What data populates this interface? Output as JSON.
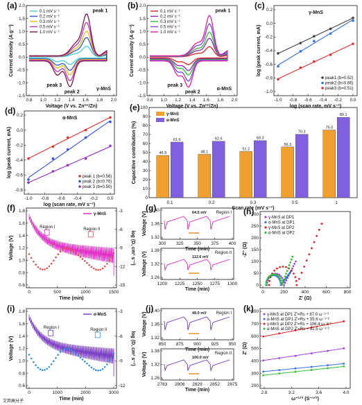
{
  "chart_data": [
    {
      "panel": "(a)",
      "type": "line",
      "xlabel": "Voltage (V vs. Zn²⁺/Zn)",
      "ylabel": "Current density (A g⁻¹)",
      "xlim": [
        0.8,
        2.0
      ],
      "ylim": [
        -1.5,
        2.0
      ],
      "xticks": [
        "0.8",
        "1.0",
        "1.2",
        "1.4",
        "1.6",
        "1.8",
        "2.0"
      ],
      "yticks": [
        "-1.5",
        "-1.0",
        "-0.5",
        "0.0",
        "0.5",
        "1.0",
        "1.5",
        "2.0"
      ],
      "legend": [
        "0.1 mV s⁻¹",
        "0.2 mV s⁻¹",
        "0.3 mV s⁻¹",
        "0.5 mV s⁻¹",
        "1.0 mV s⁻¹"
      ],
      "colors": [
        "#40d0d0",
        "#3050e0",
        "#e0c000",
        "#c030c0",
        "#7a1450"
      ],
      "annotations": [
        "peak 1",
        "peak 3",
        "peak 2",
        "γ-MnS"
      ]
    },
    {
      "panel": "(b)",
      "type": "line",
      "xlabel": "Voltage (V vs. Zn²⁺/Zn)",
      "ylabel": "Current density (A g⁻¹)",
      "xlim": [
        0.8,
        2.0
      ],
      "ylim": [
        -1.5,
        2.0
      ],
      "xticks": [
        "0.8",
        "1.0",
        "1.2",
        "1.4",
        "1.6",
        "1.8",
        "2.0"
      ],
      "yticks": [
        "-1.5",
        "-1.0",
        "-0.5",
        "0.0",
        "0.5",
        "1.0",
        "1.5",
        "2.0"
      ],
      "legend": [
        "0.1 mV s⁻¹",
        "0.2 mV s⁻¹",
        "0.3 mV s⁻¹",
        "0.5 mV s⁻¹",
        "1.0 mV s⁻¹"
      ],
      "colors": [
        "#e02020",
        "#9020c0",
        "#30c030",
        "#8040e0",
        "#e020a0"
      ],
      "annotations": [
        "peak 1",
        "peak 3",
        "peak 2",
        "α-MnS"
      ]
    },
    {
      "panel": "(c)",
      "type": "scatter",
      "title": "γ-MnS",
      "xlabel": "log (scan rate, mV s⁻¹)",
      "ylabel": "log (peak current, mA)",
      "xlim": [
        -1.0,
        0.0
      ],
      "ylim": [
        -1.0,
        0.2
      ],
      "xticks": [
        "-1.0",
        "-0.8",
        "-0.6",
        "-0.4",
        "-0.2",
        "0.0"
      ],
      "yticks": [
        "-1.0",
        "-0.8",
        "-0.6",
        "-0.4",
        "-0.2",
        "0.0",
        "0.2"
      ],
      "series": [
        {
          "name": "peak1 (b=0.52)",
          "color": "#404040",
          "x": [
            -1.0,
            -0.7,
            -0.52,
            -0.3,
            0.0
          ],
          "y": [
            -0.44,
            -0.29,
            -0.19,
            -0.08,
            0.08
          ]
        },
        {
          "name": "peak2 (b=0.66)",
          "color": "#3070e0",
          "x": [
            -1.0,
            -0.7,
            -0.52,
            -0.3,
            0.0
          ],
          "y": [
            -0.63,
            -0.41,
            -0.26,
            -0.15,
            0.04
          ]
        },
        {
          "name": "peak3 (b=0.51)",
          "color": "#e03030",
          "x": [
            -1.0,
            -0.7,
            -0.52,
            -0.3,
            0.0
          ],
          "y": [
            -0.82,
            -0.65,
            -0.56,
            -0.46,
            -0.3
          ]
        }
      ]
    },
    {
      "panel": "(d)",
      "type": "scatter",
      "title": "α-MnS",
      "xlabel": "log (scan rate, mV s⁻¹)",
      "ylabel": "log (peak current, mA)",
      "xlim": [
        -1.0,
        0.0
      ],
      "ylim": [
        -0.8,
        0.2
      ],
      "xticks": [
        "-1.0",
        "-0.8",
        "-0.6",
        "-0.4",
        "-0.2",
        "0.0"
      ],
      "yticks": [
        "-0.8",
        "-0.6",
        "-0.4",
        "-0.2",
        "0.0",
        "0.2"
      ],
      "series": [
        {
          "name": "peak 1 (b=0.56)",
          "color": "#e03030",
          "x": [
            -1.0,
            -0.7,
            -0.52,
            -0.3,
            0.0
          ],
          "y": [
            -0.38,
            -0.22,
            -0.1,
            0.0,
            0.17
          ]
        },
        {
          "name": "peak 2 (b=0.76)",
          "color": "#3050e0",
          "x": [
            -1.0,
            -0.7,
            -0.52,
            -0.3,
            0.0
          ],
          "y": [
            -0.66,
            -0.38,
            -0.26,
            -0.1,
            0.11
          ]
        },
        {
          "name": "peak 3 (b=0.50)",
          "color": "#9030c0",
          "x": [
            -1.0,
            -0.7,
            -0.52,
            -0.3,
            0.0
          ],
          "y": [
            -0.7,
            -0.55,
            -0.47,
            -0.38,
            -0.21
          ]
        }
      ]
    },
    {
      "panel": "(e)",
      "type": "bar",
      "xlabel": "Scan rate (mV s⁻¹)",
      "ylabel": "Capacitive contribution (%)",
      "ylim": [
        0,
        100
      ],
      "yticks": [
        "0",
        "10",
        "20",
        "30",
        "40",
        "50",
        "60",
        "70",
        "80",
        "90",
        "100"
      ],
      "categories": [
        "0.1",
        "0.2",
        "0.3",
        "0.5",
        "1"
      ],
      "series": [
        {
          "name": "γ-MnS",
          "color": "#f0a030",
          "values": [
            46.9,
            48.1,
            51.2,
            56.3,
            75.0
          ],
          "labels": [
            "46.9",
            "48.1",
            "51.2",
            "56.3",
            "75.0"
          ]
        },
        {
          "name": "α-MnS",
          "color": "#8060e0",
          "values": [
            61.6,
            62.6,
            63.3,
            70.3,
            89.1
          ],
          "labels": [
            "61.6",
            "62.6",
            "63.3",
            "70.3",
            "89.1"
          ]
        }
      ]
    },
    {
      "panel": "(f)",
      "type": "line",
      "xlabel": "Time (min)",
      "ylabel": "Voltage (V)",
      "y2label": "log (D, cm² s⁻¹)",
      "xlim": [
        0,
        1700
      ],
      "xticks": [
        "0",
        "500",
        "1000",
        "1500"
      ],
      "yticks": [
        "0.6",
        "0.8",
        "1.0",
        "1.2",
        "1.4",
        "1.6",
        "1.8"
      ],
      "y2ticks": [
        "-15",
        "-12",
        "-9",
        "-6",
        "-3"
      ],
      "legend": [
        "γ-MnS"
      ],
      "regions": [
        "Region I",
        "Region II"
      ]
    },
    {
      "panel": "(g)",
      "type": "line",
      "subplots": [
        {
          "xlabel": "Time (min)",
          "ylabel": "Voltage (V)",
          "xticks": [
            "300",
            "325",
            "350",
            "375",
            "400"
          ],
          "yticks": [
            "1.32",
            "1.36",
            "1.40"
          ],
          "region": "Region I",
          "annotation": "64.5 mV"
        },
        {
          "xlabel": "Time (min)",
          "ylabel": "Voltage (V)",
          "xticks": [
            "1200",
            "1225",
            "1250",
            "1275",
            "1300"
          ],
          "yticks": [
            "1.26",
            "1.32",
            "1.38"
          ],
          "region": "Region II",
          "annotation": "112.6 mV"
        }
      ]
    },
    {
      "panel": "(h)",
      "type": "scatter",
      "xlabel": "Z' (Ω)",
      "ylabel": "-Z'' (Ω)",
      "xlim": [
        0,
        800
      ],
      "ylim": [
        0,
        300
      ],
      "xticks": [
        "0",
        "200",
        "400",
        "600",
        "800"
      ],
      "yticks": [
        "0",
        "50",
        "100",
        "150",
        "200",
        "250",
        "300"
      ],
      "series": [
        {
          "name": "γ-MnS at DP1",
          "color": "#a040e0"
        },
        {
          "name": "α-MnS at DP1",
          "color": "#3070e0"
        },
        {
          "name": "γ-MnS at DP2",
          "color": "#e02020"
        },
        {
          "name": "α-MnS at DP2",
          "color": "#30c030"
        }
      ]
    },
    {
      "panel": "(i)",
      "type": "line",
      "xlabel": "Time (min)",
      "ylabel": "Voltage (V)",
      "y2label": "log (D, cm² s⁻¹)",
      "xlim": [
        0,
        3500
      ],
      "xticks": [
        "0",
        "1000",
        "2000",
        "3000"
      ],
      "yticks": [
        "0.6",
        "0.8",
        "1.0",
        "1.2",
        "1.4",
        "1.6",
        "1.8"
      ],
      "y2ticks": [
        "-12",
        "-9",
        "-6",
        "-3"
      ],
      "legend": [
        "α-MnS"
      ],
      "regions": [
        "Region I",
        "Region II"
      ]
    },
    {
      "panel": "(j)",
      "type": "line",
      "subplots": [
        {
          "xlabel": "Time (min)",
          "ylabel": "Voltage (V)",
          "xticks": [
            "850",
            "875",
            "900",
            "925",
            "950"
          ],
          "yticks": [
            "1.32",
            "1.36",
            "1.40"
          ],
          "region": "Region I",
          "annotation": "49.0 mV"
        },
        {
          "xlabel": "Time (min)",
          "ylabel": "Voltage (V)",
          "xticks": [
            "2783",
            "2806",
            "2829",
            "2852",
            "2875"
          ],
          "yticks": [
            "1.26",
            "1.32",
            "1.38"
          ],
          "region": "Region II",
          "annotation": "100.0 mV"
        }
      ]
    },
    {
      "panel": "(k)",
      "type": "scatter",
      "xlabel": "ω⁻¹ᐟ² (S⁻¹ᐟ²)",
      "ylabel": "Z' (Ω)",
      "xlim": [
        2.7,
        4.1
      ],
      "ylim": [
        150,
        800
      ],
      "xticks": [
        "2.8",
        "3.2",
        "3.6",
        "4.0"
      ],
      "yticks": [
        "200",
        "300",
        "400",
        "500",
        "600",
        "700",
        "800"
      ],
      "series": [
        {
          "name": "γ-MnS at DP1 Z'=Rs + 87.0 ω⁻¹ᐟ²",
          "color": "#a040e0",
          "x": [
            2.75,
            3.0,
            3.25,
            3.5,
            3.75,
            4.0
          ],
          "y": [
            370,
            390,
            410,
            432,
            454,
            476
          ]
        },
        {
          "name": "α-MnS at DP1 Z'=Rs + 55.6 ω⁻¹ᐟ²",
          "color": "#3070e0",
          "x": [
            2.75,
            3.0,
            3.25,
            3.5,
            3.75,
            4.0
          ],
          "y": [
            272,
            286,
            300,
            314,
            328,
            342
          ]
        },
        {
          "name": "γ-MnS at DP2 Z'=Rs + 106.4 ω⁻¹ᐟ²",
          "color": "#e02020",
          "x": [
            2.75,
            3.0,
            3.25,
            3.5,
            3.75,
            4.0
          ],
          "y": [
            580,
            607,
            634,
            660,
            687,
            713
          ]
        },
        {
          "name": "α-MnS at DP2 Z'=Rs + 62.5 ω⁻¹ᐟ²",
          "color": "#30c030",
          "x": [
            2.75,
            3.0,
            3.25,
            3.5,
            3.75,
            4.0
          ],
          "y": [
            240,
            256,
            271,
            287,
            302,
            318
          ]
        }
      ]
    }
  ],
  "watermark": "艾邦高分子"
}
